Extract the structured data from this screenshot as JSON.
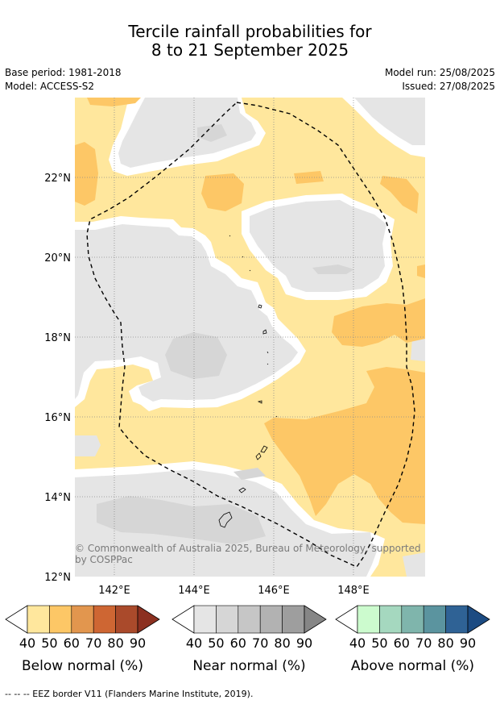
{
  "title_line1": "Tercile rainfall probabilities for",
  "title_line2": "8 to 21 September 2025",
  "base_period": "Base period: 1981-2018",
  "model": "Model: ACCESS-S2",
  "model_run": "Model run: 25/08/2025",
  "issued": "Issued: 27/08/2025",
  "copyright": "© Commonwealth of Australia 2025, Bureau of Meteorology, supported",
  "copyright2": "by COSPPac",
  "lat_labels": [
    "22°N",
    "20°N",
    "18°N",
    "16°N",
    "14°N",
    "12°N"
  ],
  "lon_labels": [
    "142°E",
    "144°E",
    "146°E",
    "148°E"
  ],
  "colorbars": [
    {
      "label": "Below normal (%)",
      "ticks": [
        "40",
        "50",
        "60",
        "70",
        "80",
        "90"
      ],
      "colors": [
        "#ffe79d",
        "#fdc766",
        "#e2964e",
        "#ce6633",
        "#aa4a2b",
        "#8c3020"
      ]
    },
    {
      "label": "Near normal (%)",
      "ticks": [
        "40",
        "50",
        "60",
        "70",
        "80",
        "90"
      ],
      "colors": [
        "#e5e5e5",
        "#d6d6d6",
        "#c6c6c6",
        "#b2b2b2",
        "#9e9e9e",
        "#868686"
      ]
    },
    {
      "label": "Above normal (%)",
      "ticks": [
        "40",
        "50",
        "60",
        "70",
        "80",
        "90"
      ],
      "colors": [
        "#ccfbce",
        "#a5d8bf",
        "#7fb5ac",
        "#5b949f",
        "#2f6295",
        "#1c4b82"
      ]
    }
  ],
  "footer": "--  --  -- EEZ border V11 (Flanders Marine Institute, 2019).",
  "colors": {
    "below_40": "#ffe79d",
    "below_50": "#fdc766",
    "near_40": "#e5e5e5",
    "near_50": "#d6d6d6",
    "eez_border": "#000000"
  }
}
